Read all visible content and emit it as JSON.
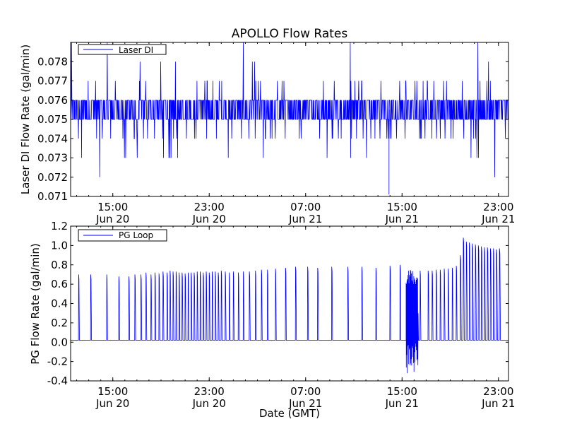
{
  "title": "APOLLO Flow Rates",
  "xlabel": "Date (GMT)",
  "colors": {
    "series": "#0000ff",
    "axes": "#000000",
    "background": "#ffffff"
  },
  "chart_data": [
    {
      "type": "line",
      "title": "APOLLO Flow Rates",
      "ylabel": "Laser DI Flow Rate (gal/min)",
      "xlabel": "",
      "xlim": [
        "2011-06-20 11:30",
        "2011-06-21 23:50"
      ],
      "ylim": [
        0.071,
        0.079
      ],
      "yticks": [
        0.071,
        0.072,
        0.073,
        0.074,
        0.075,
        0.076,
        0.077,
        0.078
      ],
      "ytick_labels": [
        "0.071",
        "0.072",
        "0.073",
        "0.074",
        "0.075",
        "0.076",
        "0.077",
        "0.078"
      ],
      "xticks": [
        {
          "time": "15:00",
          "date": "Jun 20"
        },
        {
          "time": "23:00",
          "date": "Jun 20"
        },
        {
          "time": "07:00",
          "date": "Jun 21"
        },
        {
          "time": "15:00",
          "date": "Jun 21"
        },
        {
          "time": "23:00",
          "date": "Jun 21"
        }
      ],
      "legend": "top-left",
      "grid": false,
      "series": [
        {
          "name": "Laser DI",
          "color": "#0000ff",
          "baseline": [
            0.075,
            0.076
          ],
          "dense_range": [
            0.074,
            0.077
          ],
          "spike_range": [
            0.072,
            0.079
          ],
          "x": [
            "2011-06-20 11:30",
            "2011-06-20 15:00",
            "2011-06-20 23:00",
            "2011-06-21 07:00",
            "2011-06-21 15:00",
            "2011-06-21 23:50"
          ],
          "y": [
            0.0755,
            0.0755,
            0.0755,
            0.0755,
            0.0755,
            0.0755
          ],
          "min_observed": 0.0711,
          "max_observed": 0.079
        }
      ]
    },
    {
      "type": "line",
      "ylabel": "PG Flow Rate (gal/min)",
      "xlabel": "Date (GMT)",
      "xlim": [
        "2011-06-20 11:30",
        "2011-06-21 23:50"
      ],
      "ylim": [
        -0.4,
        1.2
      ],
      "yticks": [
        -0.4,
        -0.2,
        0.0,
        0.2,
        0.4,
        0.6,
        0.8,
        1.0,
        1.2
      ],
      "ytick_labels": [
        "-0.4",
        "-0.2",
        "0.0",
        "0.2",
        "0.4",
        "0.6",
        "0.8",
        "1.0",
        "1.2"
      ],
      "xticks": [
        {
          "time": "15:00",
          "date": "Jun 20"
        },
        {
          "time": "23:00",
          "date": "Jun 20"
        },
        {
          "time": "07:00",
          "date": "Jun 21"
        },
        {
          "time": "15:00",
          "date": "Jun 21"
        },
        {
          "time": "23:00",
          "date": "Jun 21"
        }
      ],
      "legend": "top-left",
      "grid": false,
      "series": [
        {
          "name": "PG Loop",
          "color": "#0000ff",
          "baseline": 0.02,
          "pulses": [
            {
              "t": "2011-06-20 12:10",
              "peak": 0.7
            },
            {
              "t": "2011-06-20 13:10",
              "peak": 0.7
            },
            {
              "t": "2011-06-20 14:30",
              "peak": 0.7
            },
            {
              "t": "2011-06-20 15:30",
              "peak": 0.68
            },
            {
              "t": "2011-06-20 16:20",
              "peak": 0.68
            },
            {
              "t": "2011-06-20 16:50",
              "peak": 0.7
            },
            {
              "t": "2011-06-20 17:20",
              "peak": 0.7
            },
            {
              "t": "2011-06-20 17:45",
              "peak": 0.72
            },
            {
              "t": "2011-06-20 18:10",
              "peak": 0.7
            },
            {
              "t": "2011-06-20 18:30",
              "peak": 0.72
            },
            {
              "t": "2011-06-20 18:50",
              "peak": 0.71
            },
            {
              "t": "2011-06-20 19:10",
              "peak": 0.73
            },
            {
              "t": "2011-06-20 19:30",
              "peak": 0.72
            },
            {
              "t": "2011-06-20 19:45",
              "peak": 0.74
            },
            {
              "t": "2011-06-20 20:00",
              "peak": 0.73
            },
            {
              "t": "2011-06-20 20:15",
              "peak": 0.73
            },
            {
              "t": "2011-06-20 20:30",
              "peak": 0.72
            },
            {
              "t": "2011-06-20 20:45",
              "peak": 0.72
            },
            {
              "t": "2011-06-20 21:00",
              "peak": 0.71
            },
            {
              "t": "2011-06-20 21:15",
              "peak": 0.72
            },
            {
              "t": "2011-06-20 21:30",
              "peak": 0.72
            },
            {
              "t": "2011-06-20 21:45",
              "peak": 0.72
            },
            {
              "t": "2011-06-20 22:00",
              "peak": 0.73
            },
            {
              "t": "2011-06-20 22:15",
              "peak": 0.73
            },
            {
              "t": "2011-06-20 22:30",
              "peak": 0.72
            },
            {
              "t": "2011-06-20 22:45",
              "peak": 0.73
            },
            {
              "t": "2011-06-20 23:00",
              "peak": 0.72
            },
            {
              "t": "2011-06-20 23:15",
              "peak": 0.73
            },
            {
              "t": "2011-06-20 23:30",
              "peak": 0.73
            },
            {
              "t": "2011-06-20 23:45",
              "peak": 0.72
            },
            {
              "t": "2011-06-21 00:00",
              "peak": 0.74
            },
            {
              "t": "2011-06-21 00:20",
              "peak": 0.73
            },
            {
              "t": "2011-06-21 00:40",
              "peak": 0.72
            },
            {
              "t": "2011-06-21 01:00",
              "peak": 0.73
            },
            {
              "t": "2011-06-21 01:25",
              "peak": 0.72
            },
            {
              "t": "2011-06-21 01:50",
              "peak": 0.73
            },
            {
              "t": "2011-06-21 02:20",
              "peak": 0.73
            },
            {
              "t": "2011-06-21 02:50",
              "peak": 0.74
            },
            {
              "t": "2011-06-21 03:20",
              "peak": 0.75
            },
            {
              "t": "2011-06-21 03:50",
              "peak": 0.75
            },
            {
              "t": "2011-06-21 04:30",
              "peak": 0.76
            },
            {
              "t": "2011-06-21 05:20",
              "peak": 0.77
            },
            {
              "t": "2011-06-21 06:10",
              "peak": 0.78
            },
            {
              "t": "2011-06-21 07:10",
              "peak": 0.78
            },
            {
              "t": "2011-06-21 08:00",
              "peak": 0.77
            },
            {
              "t": "2011-06-21 09:10",
              "peak": 0.78
            },
            {
              "t": "2011-06-21 10:30",
              "peak": 0.78
            },
            {
              "t": "2011-06-21 11:40",
              "peak": 0.78
            },
            {
              "t": "2011-06-21 12:50",
              "peak": 0.77
            },
            {
              "t": "2011-06-21 14:00",
              "peak": 0.79
            },
            {
              "t": "2011-06-21 14:50",
              "peak": 0.8
            },
            {
              "t": "2011-06-21 16:30",
              "peak": 0.74
            },
            {
              "t": "2011-06-21 17:10",
              "peak": 0.74
            },
            {
              "t": "2011-06-21 17:30",
              "peak": 0.74
            },
            {
              "t": "2011-06-21 17:50",
              "peak": 0.75
            },
            {
              "t": "2011-06-21 18:10",
              "peak": 0.75
            },
            {
              "t": "2011-06-21 18:30",
              "peak": 0.76
            },
            {
              "t": "2011-06-21 18:50",
              "peak": 0.76
            },
            {
              "t": "2011-06-21 19:10",
              "peak": 0.77
            },
            {
              "t": "2011-06-21 19:30",
              "peak": 0.79
            },
            {
              "t": "2011-06-21 19:50",
              "peak": 0.9
            },
            {
              "t": "2011-06-21 20:05",
              "peak": 1.08
            },
            {
              "t": "2011-06-21 20:20",
              "peak": 1.04
            },
            {
              "t": "2011-06-21 20:35",
              "peak": 1.03
            },
            {
              "t": "2011-06-21 20:50",
              "peak": 1.02
            },
            {
              "t": "2011-06-21 21:05",
              "peak": 1.01
            },
            {
              "t": "2011-06-21 21:20",
              "peak": 1.0
            },
            {
              "t": "2011-06-21 21:35",
              "peak": 0.99
            },
            {
              "t": "2011-06-21 21:50",
              "peak": 0.98
            },
            {
              "t": "2011-06-21 22:05",
              "peak": 0.98
            },
            {
              "t": "2011-06-21 22:20",
              "peak": 0.97
            },
            {
              "t": "2011-06-21 22:35",
              "peak": 0.97
            },
            {
              "t": "2011-06-21 22:50",
              "peak": 0.96
            },
            {
              "t": "2011-06-21 23:05",
              "peak": 0.97
            }
          ],
          "burst": {
            "start": "2011-06-21 15:20",
            "end": "2011-06-21 16:20",
            "min": -0.33,
            "max": 0.75
          }
        }
      ]
    }
  ]
}
